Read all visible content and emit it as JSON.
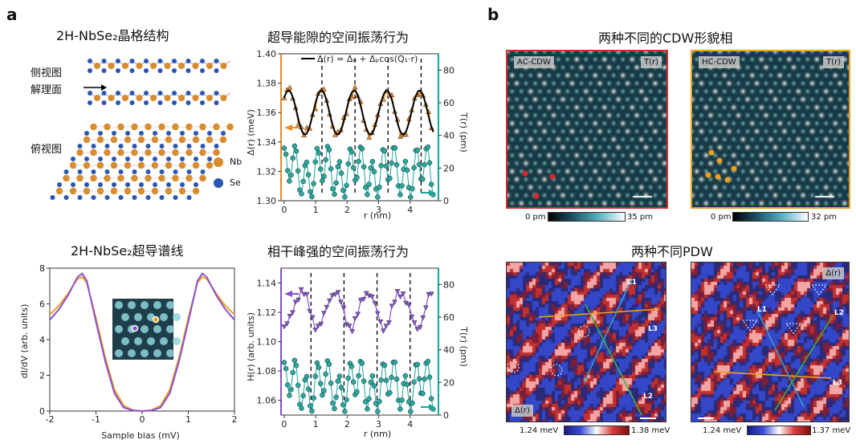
{
  "panel_a_letter": "a",
  "panel_b_letter": "b",
  "lattice": {
    "title": "2H-NbSe₂晶格结构",
    "side_view": "侧视图",
    "cleave_plane": "解理面",
    "top_view": "俯视图",
    "legend_nb": "Nb",
    "legend_se": "Se",
    "nb_color": "#d98a2b",
    "se_color": "#2a56b0"
  },
  "gap_plot": {
    "title": "超导能隙的空间振荡行为",
    "legend": "Δ(r) = Δ₀ + Δₚcos(Q₁·r)",
    "ylabel_left": "Δ(r) (meV)",
    "ylabel_right": "T(r) (pm)",
    "xlabel": "r (nm)"
  },
  "spectrum": {
    "title": "2H-NbSe₂超导谱线",
    "ylabel": "dI/dV (arb. units)",
    "xlabel": "Sample bias (mV)"
  },
  "coherence_plot": {
    "title": "相干峰强的空间振荡行为",
    "ylabel_left": "H(r) (arb. units)",
    "ylabel_right": "T(r) (pm)",
    "xlabel": "r (nm)"
  },
  "cdw": {
    "title": "两种不同的CDW形貌相",
    "left_tag": "AC-CDW",
    "right_tag": "HC-CDW",
    "t_tag": "T(r)",
    "left_cbar_min": "0 pm",
    "left_cbar_max": "35 pm",
    "right_cbar_min": "0 pm",
    "right_cbar_max": "32 pm",
    "left_border": "#d92b2b",
    "right_border": "#f0a020"
  },
  "pdw": {
    "title": "两种不同PDW",
    "left_tag": "Δ(r)",
    "right_tag": "Δ(r)",
    "l1": "L1",
    "l2": "L2",
    "l3": "L3",
    "left_cbar_min": "1.24 meV",
    "left_cbar_max": "1.38 meV",
    "right_cbar_min": "1.24 meV",
    "right_cbar_max": "1.37 meV"
  },
  "chart_data": [
    {
      "type": "scatter",
      "title": "超导能隙的空间振荡行为",
      "xlabel": "r (nm)",
      "ylabel": "Δ(r) (meV)",
      "ylabel_right": "T(r) (pm)",
      "xlim": [
        -0.1,
        4.9
      ],
      "ylim": [
        1.3,
        1.4
      ],
      "ylim_right": [
        0,
        90
      ],
      "xticks": [
        0,
        1,
        2,
        3,
        4
      ],
      "yticks": [
        1.3,
        1.32,
        1.34,
        1.36,
        1.38,
        1.4
      ],
      "yticks_right": [
        0,
        20,
        40,
        60,
        80
      ],
      "series": [
        {
          "name": "Δ(r) = Δ₀ + Δₚcos(Q₁·r)",
          "axis": "left",
          "x": [
            0,
            1.04,
            2.08,
            3.12,
            4.16
          ],
          "values": [
            1.375,
            1.375,
            1.375,
            1.375,
            1.375
          ]
        }
      ],
      "dashed_lines_x": [
        1.2,
        2.25,
        3.3,
        4.35
      ]
    },
    {
      "type": "line",
      "title": "2H-NbSe₂超导谱线",
      "xlabel": "Sample bias (mV)",
      "ylabel": "dI/dV (arb. units)",
      "xlim": [
        -2,
        2
      ],
      "ylim": [
        0,
        8
      ],
      "xticks": [
        -2,
        -1,
        0,
        1,
        2
      ],
      "yticks": [
        0,
        2,
        4,
        6,
        8
      ],
      "series": [
        {
          "color": "#f0a020",
          "x": [
            -2,
            -1.8,
            -1.6,
            -1.4,
            -1.3,
            -1.2,
            -1.0,
            -0.8,
            -0.6,
            -0.4,
            -0.2,
            0,
            0.2,
            0.4,
            0.6,
            0.8,
            1.0,
            1.2,
            1.3,
            1.4,
            1.6,
            1.8,
            2
          ],
          "values": [
            5.4,
            5.9,
            6.6,
            7.4,
            7.5,
            7.2,
            5.2,
            3.0,
            1.2,
            0.3,
            0.05,
            0.0,
            0.05,
            0.3,
            1.2,
            3.0,
            5.2,
            7.2,
            7.5,
            7.4,
            6.6,
            5.9,
            5.4
          ]
        },
        {
          "color": "#8a4fd0",
          "x": [
            -2,
            -1.8,
            -1.6,
            -1.4,
            -1.3,
            -1.2,
            -1.0,
            -0.8,
            -0.6,
            -0.4,
            -0.2,
            0,
            0.2,
            0.4,
            0.6,
            0.8,
            1.0,
            1.2,
            1.3,
            1.4,
            1.6,
            1.8,
            2
          ],
          "values": [
            5.1,
            5.7,
            6.5,
            7.5,
            7.7,
            7.3,
            5.0,
            2.8,
            1.0,
            0.2,
            0.03,
            0.0,
            0.03,
            0.2,
            1.0,
            2.8,
            5.0,
            7.3,
            7.7,
            7.5,
            6.5,
            5.7,
            5.1
          ]
        }
      ]
    },
    {
      "type": "scatter",
      "title": "相干峰强的空间振荡行为",
      "xlabel": "r (nm)",
      "ylabel": "H(r) (arb. units)",
      "ylabel_right": "T(r) (pm)",
      "xlim": [
        -0.1,
        4.9
      ],
      "ylim": [
        1.05,
        1.15
      ],
      "ylim_right": [
        0,
        90
      ],
      "xticks": [
        0,
        1,
        2,
        3,
        4
      ],
      "yticks": [
        1.06,
        1.08,
        1.1,
        1.12,
        1.14
      ],
      "yticks_right": [
        0,
        20,
        40,
        60,
        80
      ],
      "dashed_lines_x": [
        0.85,
        1.9,
        2.95,
        4.0
      ]
    }
  ]
}
